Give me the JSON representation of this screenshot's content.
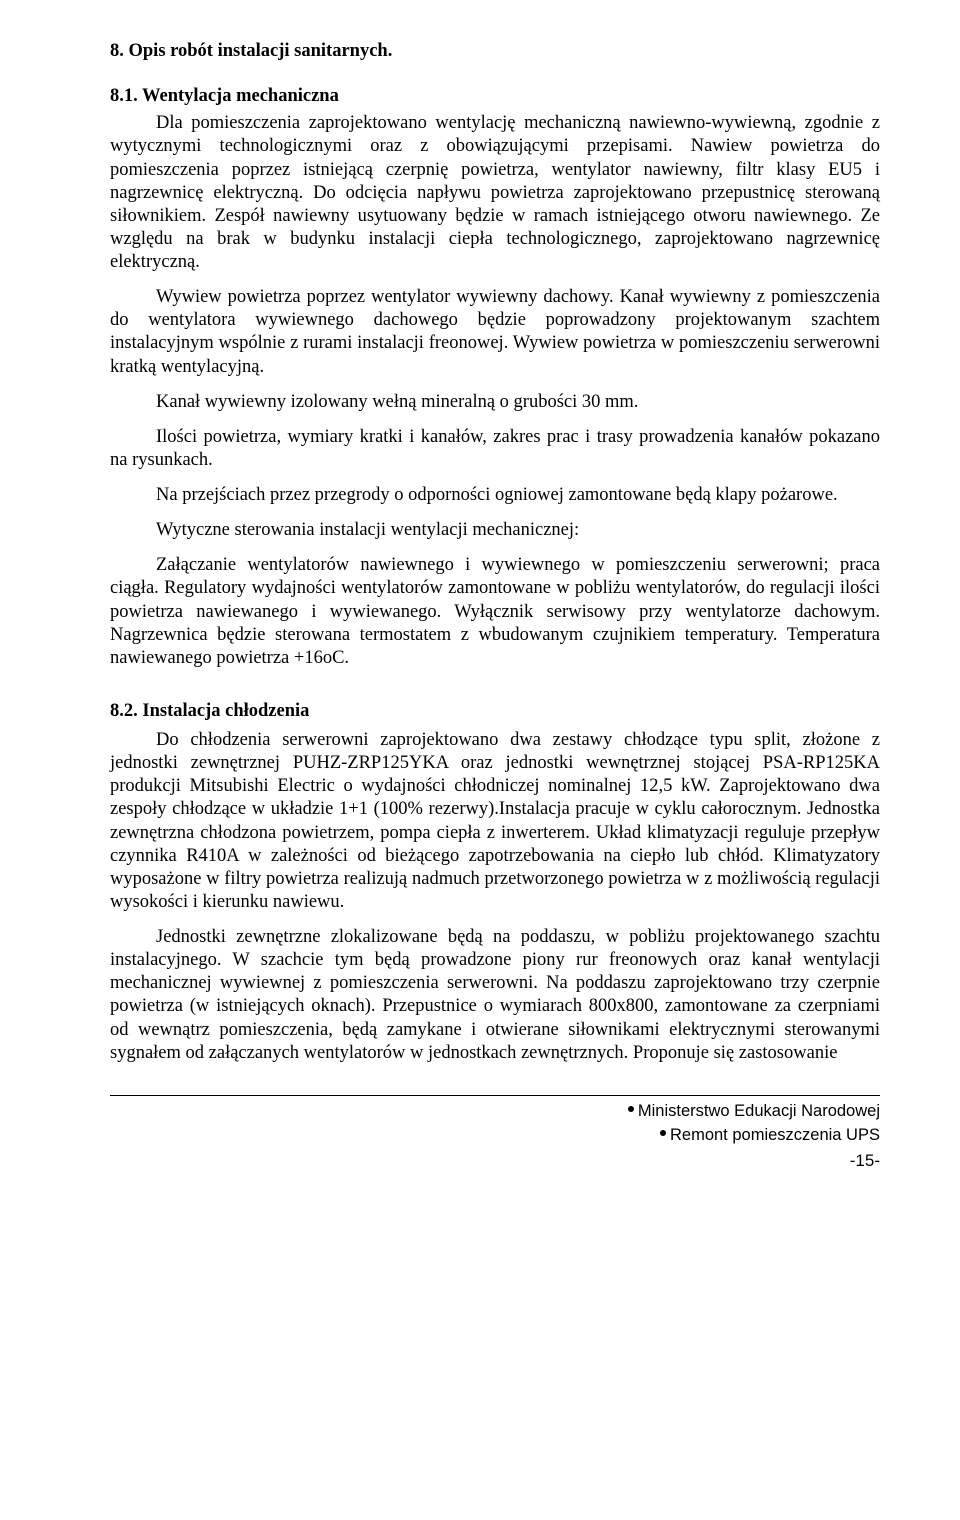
{
  "headings": {
    "h8": "8. Opis robót instalacji sanitarnych.",
    "h8_1": "8.1. Wentylacja mechaniczna",
    "h8_2": "8.2. Instalacja chłodzenia"
  },
  "section_8_1": {
    "p1": "Dla pomieszczenia zaprojektowano wentylację mechaniczną nawiewno-wywiewną, zgodnie z wytycznymi technologicznymi oraz z obowiązującymi przepisami. Nawiew powietrza do pomieszczenia poprzez istniejącą czerpnię powietrza, wentylator nawiewny, filtr klasy EU5 i nagrzewnicę elektryczną. Do odcięcia napływu powietrza zaprojektowano przepustnicę sterowaną siłownikiem. Zespół nawiewny usytuowany będzie w ramach istniejącego otworu nawiewnego. Ze względu na brak w budynku instalacji ciepła technologicznego, zaprojektowano nagrzewnicę elektryczną.",
    "p2": "Wywiew powietrza poprzez wentylator wywiewny dachowy. Kanał wywiewny z pomieszczenia do wentylatora wywiewnego dachowego będzie poprowadzony projektowanym szachtem instalacyjnym wspólnie z rurami instalacji freonowej. Wywiew powietrza w pomieszczeniu serwerowni kratką wentylacyjną.",
    "p3": "Kanał wywiewny izolowany wełną mineralną o grubości 30 mm.",
    "p4": "Ilości powietrza, wymiary kratki i kanałów, zakres prac i trasy prowadzenia kanałów pokazano na rysunkach.",
    "p5": "Na przejściach przez przegrody o odporności ogniowej zamontowane będą klapy pożarowe.",
    "p6": "Wytyczne sterowania instalacji wentylacji mechanicznej:",
    "p7": "Załączanie wentylatorów nawiewnego i wywiewnego w pomieszczeniu serwerowni; praca ciągła. Regulatory wydajności wentylatorów zamontowane w pobliżu wentylatorów, do regulacji ilości powietrza nawiewanego i wywiewanego. Wyłącznik serwisowy przy wentylatorze dachowym. Nagrzewnica będzie sterowana termostatem z wbudowanym czujnikiem temperatury. Temperatura nawiewanego powietrza +16oC."
  },
  "section_8_2": {
    "p1": "Do chłodzenia serwerowni zaprojektowano dwa zestawy chłodzące typu split, złożone z jednostki zewnętrznej PUHZ-ZRP125YKA oraz jednostki wewnętrznej stojącej PSA-RP125KA produkcji Mitsubishi Electric o wydajności chłodniczej nominalnej 12,5 kW. Zaprojektowano dwa zespoły chłodzące w układzie 1+1 (100% rezerwy).Instalacja pracuje w cyklu całorocznym. Jednostka zewnętrzna chłodzona powietrzem, pompa ciepła z inwerterem. Układ klimatyzacji reguluje przepływ czynnika R410A w zależności od bieżącego zapotrzebowania na ciepło lub chłód. Klimatyzatory wyposażone w filtry powietrza realizują nadmuch przetworzonego powietrza w z możliwością regulacji wysokości i  kierunku nawiewu.",
    "p2": "Jednostki zewnętrzne zlokalizowane będą na poddaszu, w pobliżu projektowanego szachtu instalacyjnego. W szachcie tym będą prowadzone piony rur freonowych oraz kanał wentylacji mechanicznej wywiewnej z pomieszczenia serwerowni. Na poddaszu zaprojektowano trzy czerpnie powietrza (w istniejących oknach). Przepustnice o wymiarach 800x800, zamontowane za czerpniami od wewnątrz pomieszczenia, będą zamykane i otwierane siłownikami elektrycznymi sterowanymi sygnałem od załączanych wentylatorów w jednostkach zewnętrznych. Proponuje się zastosowanie"
  },
  "footer": {
    "line1": "Ministerstwo Edukacji Narodowej",
    "line2": "Remont pomieszczenia UPS",
    "page": "-15-"
  }
}
